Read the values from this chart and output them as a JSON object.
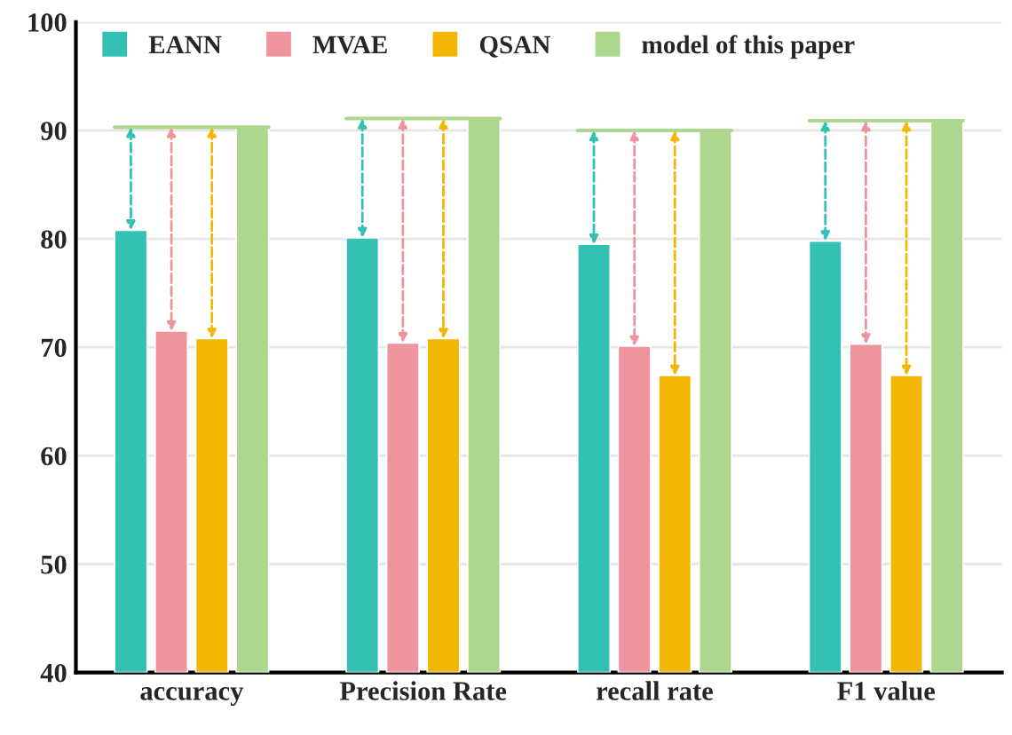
{
  "chart_data": {
    "type": "bar",
    "categories": [
      "accuracy",
      "Precision Rate",
      "recall rate",
      "F1 value"
    ],
    "series": [
      {
        "name": "EANN",
        "color": "#33c1b4",
        "values": [
          80.8,
          80.1,
          79.5,
          79.8
        ]
      },
      {
        "name": "MVAE",
        "color": "#ee949c",
        "values": [
          71.5,
          70.4,
          70.1,
          70.3
        ]
      },
      {
        "name": "QSAN",
        "color": "#f2b705",
        "values": [
          70.8,
          70.8,
          67.4,
          67.4
        ]
      },
      {
        "name": "model of this paper",
        "color": "#add78e",
        "values": [
          90.3,
          91.1,
          90.0,
          90.9
        ]
      }
    ],
    "ylim": [
      40,
      100
    ],
    "yticks": [
      40,
      50,
      60,
      70,
      80,
      90,
      100
    ],
    "grid": "y",
    "legend": "top left"
  }
}
